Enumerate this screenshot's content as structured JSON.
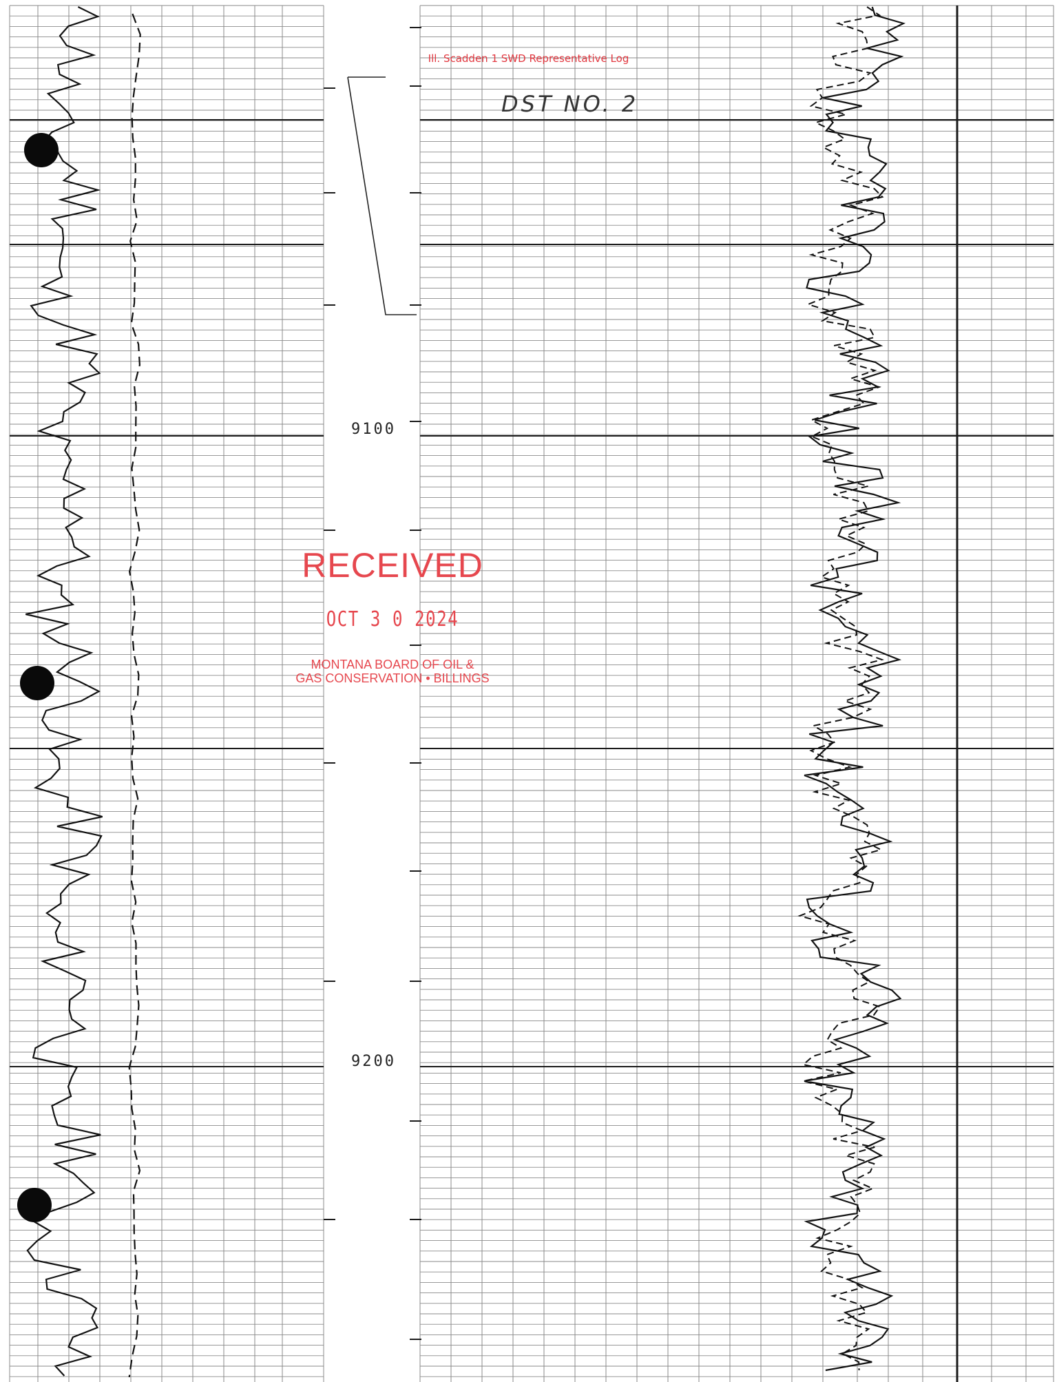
{
  "header_note": "Ill. Scadden 1 SWD Representative Log",
  "handwritten": "DST NO. 2",
  "depths": {
    "upper": "9100",
    "lower": "9200"
  },
  "stamp": {
    "word": "RECEIVED",
    "date": "OCT 3 0 2024",
    "agency_line1": "MONTANA BOARD OF OIL &",
    "agency_line2": "GAS CONSERVATION • BILLINGS",
    "color": "#e6474e"
  },
  "colors": {
    "grid": "#8a8a8a",
    "heavy_line": "#1a1a1a",
    "curve": "#111111"
  }
}
